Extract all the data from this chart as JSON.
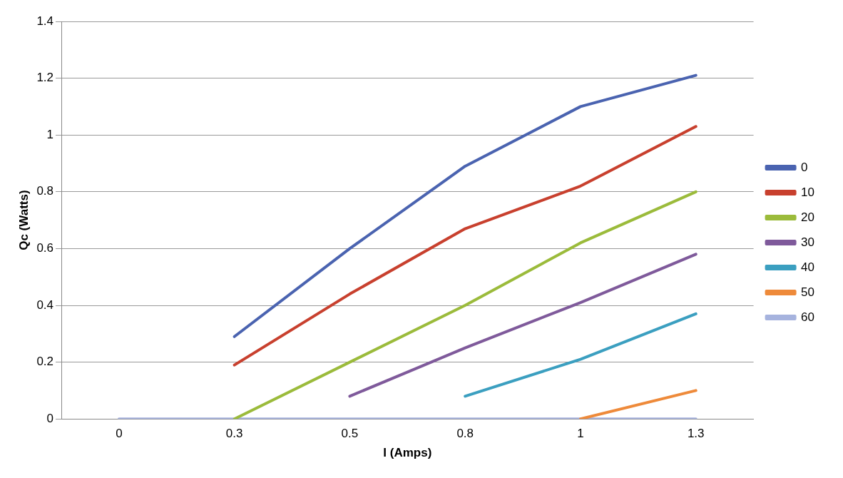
{
  "chart_data": {
    "type": "line",
    "xlabel": "I (Amps)",
    "ylabel": "Qc (Watts)",
    "categories": [
      "0",
      "0.3",
      "0.5",
      "0.8",
      "1",
      "1.3"
    ],
    "ylim": [
      0,
      1.4
    ],
    "yticks": [
      0,
      0.2,
      0.4,
      0.6,
      0.8,
      1,
      1.2,
      1.4
    ],
    "grid": "y",
    "legend": "right",
    "marker": "none",
    "line_style": "solid",
    "series": [
      {
        "name": "0",
        "color": "#4a63b0",
        "values": [
          null,
          0.29,
          0.6,
          0.89,
          1.1,
          1.21
        ]
      },
      {
        "name": "10",
        "color": "#c8402e",
        "values": [
          null,
          0.19,
          0.44,
          0.67,
          0.82,
          1.03
        ]
      },
      {
        "name": "20",
        "color": "#9bbb3b",
        "values": [
          null,
          0,
          0.2,
          0.4,
          0.62,
          0.8
        ]
      },
      {
        "name": "30",
        "color": "#7f5a9b",
        "values": [
          null,
          null,
          0.08,
          0.25,
          0.41,
          0.58
        ]
      },
      {
        "name": "40",
        "color": "#3b9fc0",
        "values": [
          null,
          null,
          null,
          0.08,
          0.21,
          0.37
        ]
      },
      {
        "name": "50",
        "color": "#ee8a3a",
        "values": [
          null,
          null,
          null,
          null,
          0,
          0.1
        ]
      },
      {
        "name": "60",
        "color": "#a6b3de",
        "values": [
          0,
          0,
          0,
          0,
          0,
          0
        ]
      }
    ]
  }
}
